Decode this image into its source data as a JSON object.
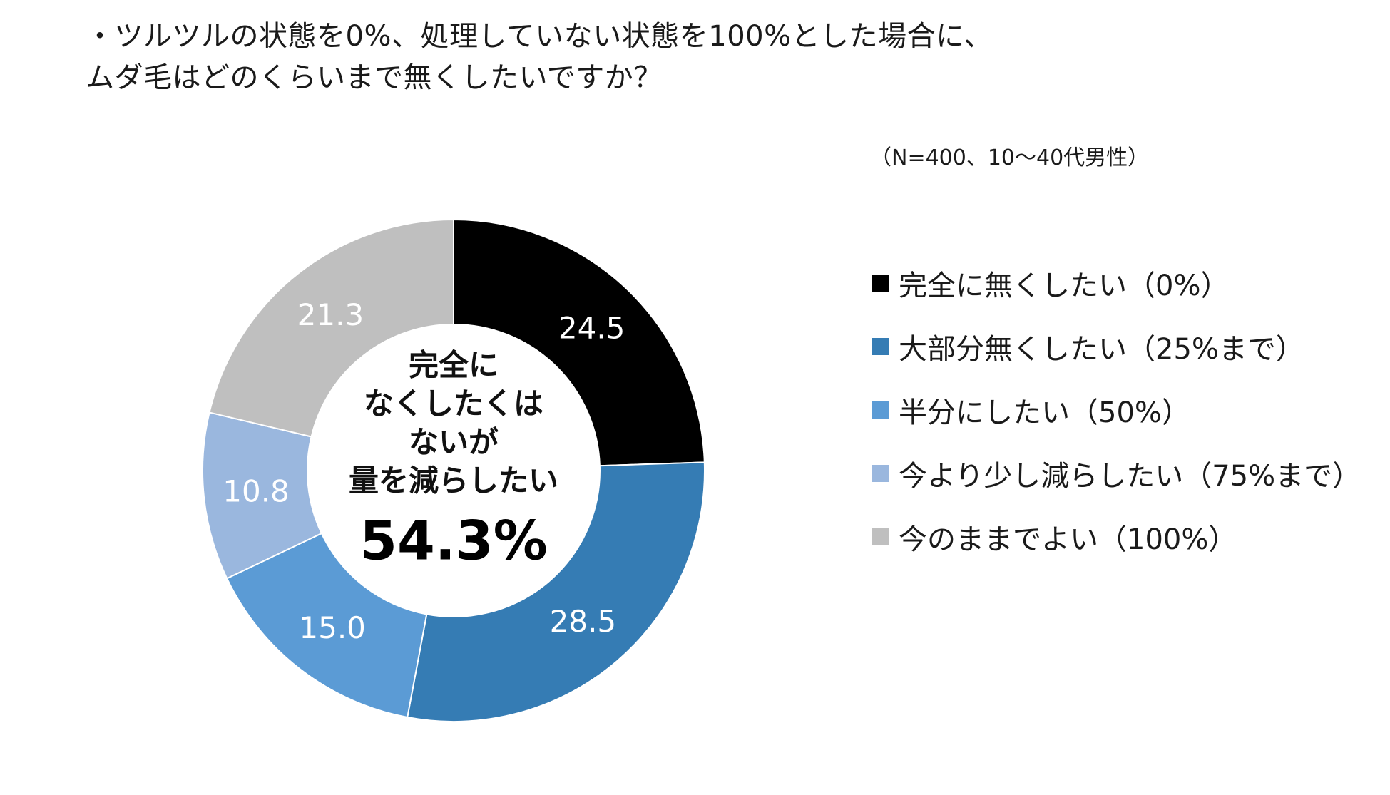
{
  "title": {
    "line1": "・ツルツルの状態を0%、処理していない状態を100%とした場合に、",
    "line2": "ムダ毛はどのくらいまで無くしたいですか？"
  },
  "note": "（N=400、10～40代男性）",
  "center_label": {
    "lines": [
      "完全に",
      "なくしたくは",
      "ないが",
      "量を減らしたい"
    ],
    "value": "54.3%"
  },
  "chart_data": {
    "type": "pie",
    "donut": true,
    "unit": "%",
    "categories": [
      "完全に無くしたい（0%）",
      "大部分無くしたい（25%まで）",
      "半分にしたい（50%）",
      "今より少し減らしたい（75%まで）",
      "今のままでよい（100%）"
    ],
    "values": [
      24.5,
      28.5,
      15.0,
      10.8,
      21.3
    ],
    "value_labels": [
      "24.5",
      "28.5",
      "15.0",
      "10.8",
      "21.3"
    ],
    "colors": [
      "#000000",
      "#357cb4",
      "#5b9bd5",
      "#9ab7de",
      "#bfbfbf"
    ],
    "label_colors": [
      "#ffffff",
      "#ffffff",
      "#ffffff",
      "#ffffff",
      "#ffffff"
    ],
    "legend_position": "right"
  }
}
